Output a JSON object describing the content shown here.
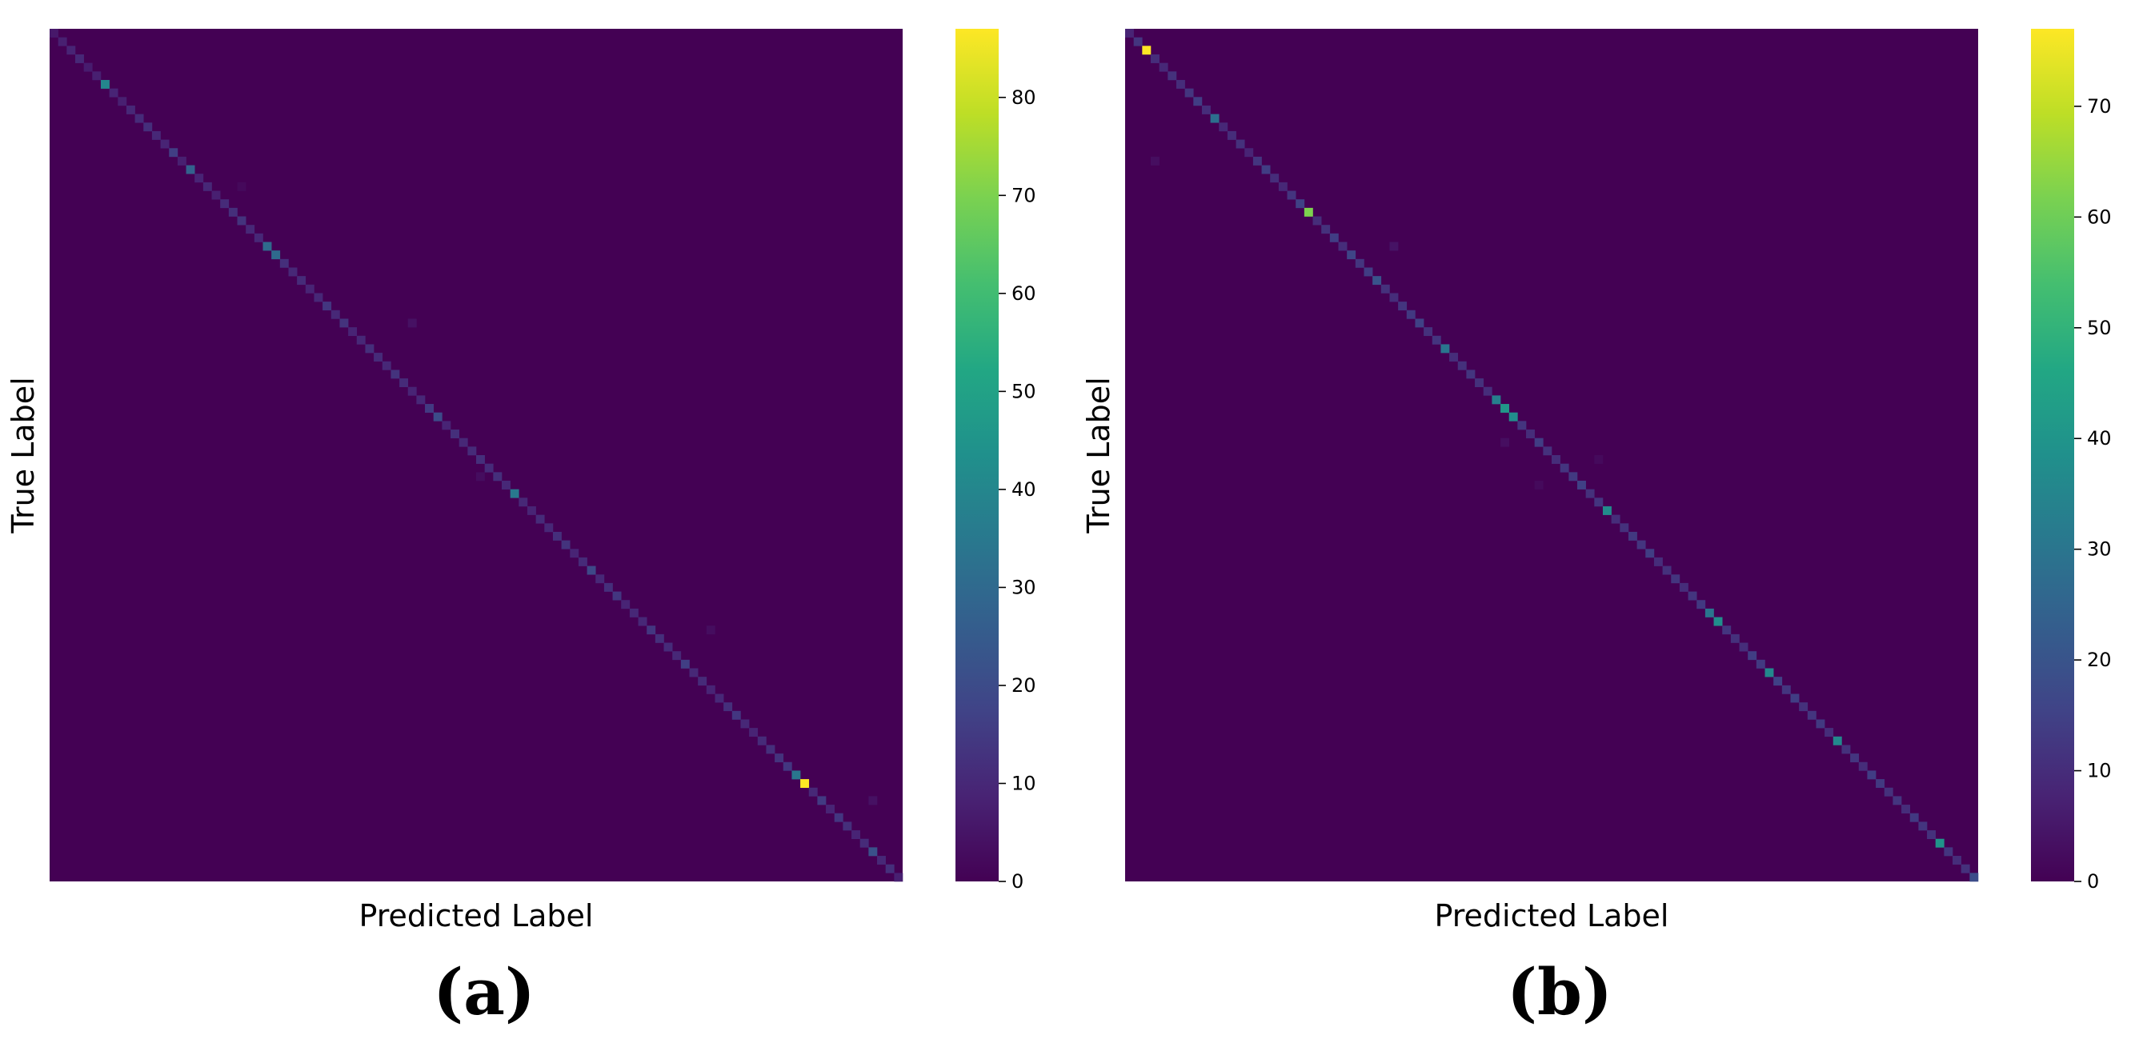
{
  "chart_data": [
    {
      "type": "heatmap",
      "panel_label": "(a)",
      "xlabel": "Predicted Label",
      "ylabel": "True Label",
      "colormap": "viridis",
      "n_classes": 100,
      "background_value": 0,
      "color_range": [
        0,
        87
      ],
      "colorbar_ticks": [
        0,
        10,
        20,
        30,
        40,
        50,
        60,
        70,
        80
      ],
      "diagonal_values": [
        6,
        8,
        9,
        10,
        7,
        8,
        40,
        9,
        8,
        10,
        11,
        12,
        10,
        9,
        16,
        8,
        27,
        9,
        10,
        8,
        11,
        12,
        13,
        10,
        10,
        30,
        30,
        12,
        10,
        11,
        9,
        10,
        14,
        10,
        13,
        9,
        10,
        12,
        11,
        10,
        13,
        11,
        9,
        10,
        15,
        20,
        9,
        12,
        10,
        11,
        12,
        11,
        12,
        10,
        35,
        10,
        9,
        11,
        10,
        12,
        13,
        9,
        11,
        19,
        10,
        12,
        14,
        9,
        10,
        10,
        14,
        12,
        11,
        10,
        16,
        10,
        11,
        9,
        10,
        12,
        14,
        10,
        9,
        11,
        12,
        13,
        14,
        34,
        87,
        10,
        15,
        9,
        14,
        12,
        9,
        11,
        22,
        10,
        12,
        8
      ],
      "off_diagonal": [
        {
          "row": 34,
          "col": 42,
          "value": 4
        },
        {
          "row": 52,
          "col": 50,
          "value": 3
        },
        {
          "row": 70,
          "col": 77,
          "value": 3
        },
        {
          "row": 90,
          "col": 96,
          "value": 4
        },
        {
          "row": 18,
          "col": 22,
          "value": 2
        }
      ]
    },
    {
      "type": "heatmap",
      "panel_label": "(b)",
      "xlabel": "Predicted Label",
      "ylabel": "True Label",
      "colormap": "viridis",
      "n_classes": 100,
      "background_value": 0,
      "color_range": [
        0,
        77
      ],
      "colorbar_ticks": [
        0,
        10,
        20,
        30,
        40,
        50,
        60,
        70
      ],
      "diagonal_values": [
        8,
        12,
        77,
        10,
        9,
        11,
        10,
        12,
        14,
        10,
        28,
        9,
        10,
        11,
        8,
        12,
        14,
        10,
        9,
        12,
        15,
        62,
        10,
        11,
        14,
        10,
        16,
        12,
        14,
        20,
        11,
        10,
        12,
        13,
        15,
        11,
        12,
        30,
        10,
        11,
        12,
        11,
        10,
        33,
        41,
        38,
        12,
        10,
        14,
        11,
        10,
        12,
        13,
        15,
        11,
        12,
        37,
        10,
        11,
        13,
        12,
        14,
        10,
        11,
        12,
        10,
        12,
        13,
        30,
        38,
        12,
        11,
        10,
        14,
        13,
        36,
        15,
        12,
        14,
        11,
        12,
        13,
        10,
        36,
        11,
        12,
        10,
        14,
        13,
        11,
        12,
        10,
        13,
        12,
        11,
        40,
        12,
        10,
        11,
        18
      ],
      "off_diagonal": [
        {
          "row": 15,
          "col": 3,
          "value": 3
        },
        {
          "row": 25,
          "col": 31,
          "value": 4
        },
        {
          "row": 48,
          "col": 44,
          "value": 3
        },
        {
          "row": 50,
          "col": 55,
          "value": 2
        },
        {
          "row": 53,
          "col": 48,
          "value": 2
        }
      ]
    }
  ]
}
